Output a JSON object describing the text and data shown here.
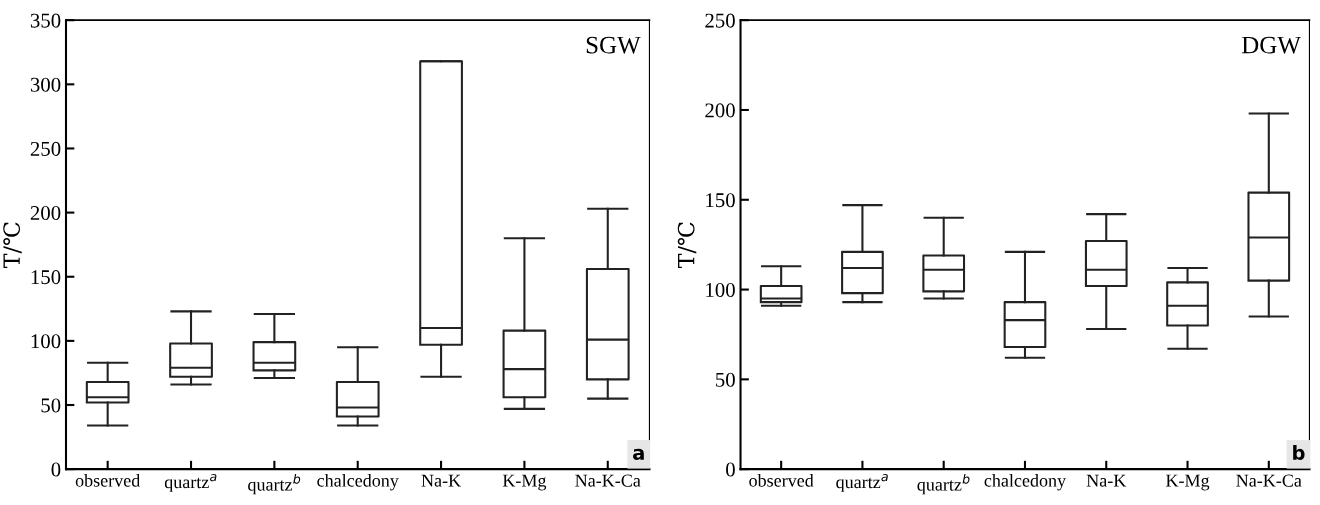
{
  "chart_data": [
    {
      "type": "box",
      "title": "SGW",
      "ylabel": "T/℃",
      "categories": [
        "observed",
        "quartz$^{a}$",
        "quartz$^{b}$",
        "chalcedony",
        "Na-K",
        "K-Mg",
        "Na-K-Ca"
      ],
      "ylim": [
        0,
        350
      ],
      "yticks": [
        0,
        50,
        100,
        150,
        200,
        250,
        300,
        350
      ],
      "color": "#222222",
      "grid": false,
      "annotations": [
        "a"
      ],
      "boxes": [
        {
          "low": 34,
          "q1": 52,
          "median": 56,
          "q3": 68,
          "high": 83
        },
        {
          "low": 66,
          "q1": 72,
          "median": 79,
          "q3": 98,
          "high": 123
        },
        {
          "low": 71,
          "q1": 77,
          "median": 83,
          "q3": 99,
          "high": 121
        },
        {
          "low": 34,
          "q1": 41,
          "median": 48,
          "q3": 68,
          "high": 95
        },
        {
          "low": 72,
          "q1": 97,
          "median": 110,
          "q3": 318,
          "high": 318
        },
        {
          "low": 47,
          "q1": 56,
          "median": 78,
          "q3": 108,
          "high": 180
        },
        {
          "low": 55,
          "q1": 70,
          "median": 101,
          "q3": 156,
          "high": 203
        }
      ]
    },
    {
      "type": "box",
      "title": "DGW",
      "ylabel": "T/℃",
      "categories": [
        "observed",
        "quartz$^{a}$",
        "quartz$^{b}$",
        "chalcedony",
        "Na-K",
        "K-Mg",
        "Na-K-Ca"
      ],
      "ylim": [
        0,
        250
      ],
      "yticks": [
        0,
        50,
        100,
        150,
        200,
        250
      ],
      "color": "#222222",
      "grid": false,
      "annotations": [
        "b"
      ],
      "boxes": [
        {
          "low": 91,
          "q1": 93,
          "median": 95,
          "q3": 102,
          "high": 113
        },
        {
          "low": 93,
          "q1": 98,
          "median": 112,
          "q3": 121,
          "high": 147
        },
        {
          "low": 95,
          "q1": 99,
          "median": 111,
          "q3": 119,
          "high": 140
        },
        {
          "low": 62,
          "q1": 68,
          "median": 83,
          "q3": 93,
          "high": 121
        },
        {
          "low": 78,
          "q1": 102,
          "median": 111,
          "q3": 127,
          "high": 142
        },
        {
          "low": 67,
          "q1": 80,
          "median": 91,
          "q3": 104,
          "high": 112
        },
        {
          "low": 85,
          "q1": 105,
          "median": 129,
          "q3": 154,
          "high": 198
        }
      ]
    }
  ]
}
